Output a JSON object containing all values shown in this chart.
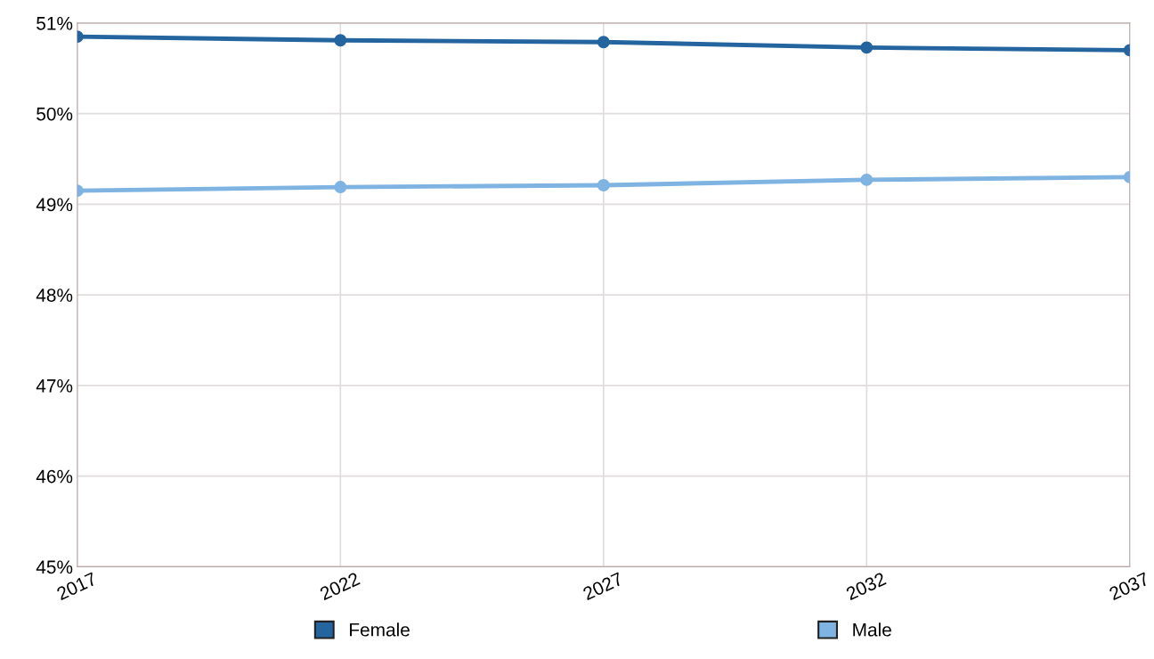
{
  "chart_data": {
    "type": "line",
    "x": [
      2017,
      2022,
      2027,
      2032,
      2037
    ],
    "series": [
      {
        "name": "Female",
        "color": "#24659f",
        "values": [
          50.85,
          50.81,
          50.79,
          50.73,
          50.7
        ]
      },
      {
        "name": "Male",
        "color": "#7eb3e2",
        "values": [
          49.15,
          49.19,
          49.21,
          49.27,
          49.3
        ]
      }
    ],
    "xlim": [
      2017,
      2037
    ],
    "xticks": [
      2017,
      2022,
      2027,
      2032,
      2037
    ],
    "ylim": [
      45,
      51
    ],
    "yticks": [
      {
        "value": 45,
        "label": "45%"
      },
      {
        "value": 46,
        "label": "46%"
      },
      {
        "value": 47,
        "label": "47%"
      },
      {
        "value": 48,
        "label": "48%"
      },
      {
        "value": 49,
        "label": "49%"
      },
      {
        "value": 50,
        "label": "50%"
      },
      {
        "value": 51,
        "label": "51%"
      }
    ],
    "grid": true,
    "legend": "bottom",
    "marker": "circle",
    "line_style": "solid"
  }
}
